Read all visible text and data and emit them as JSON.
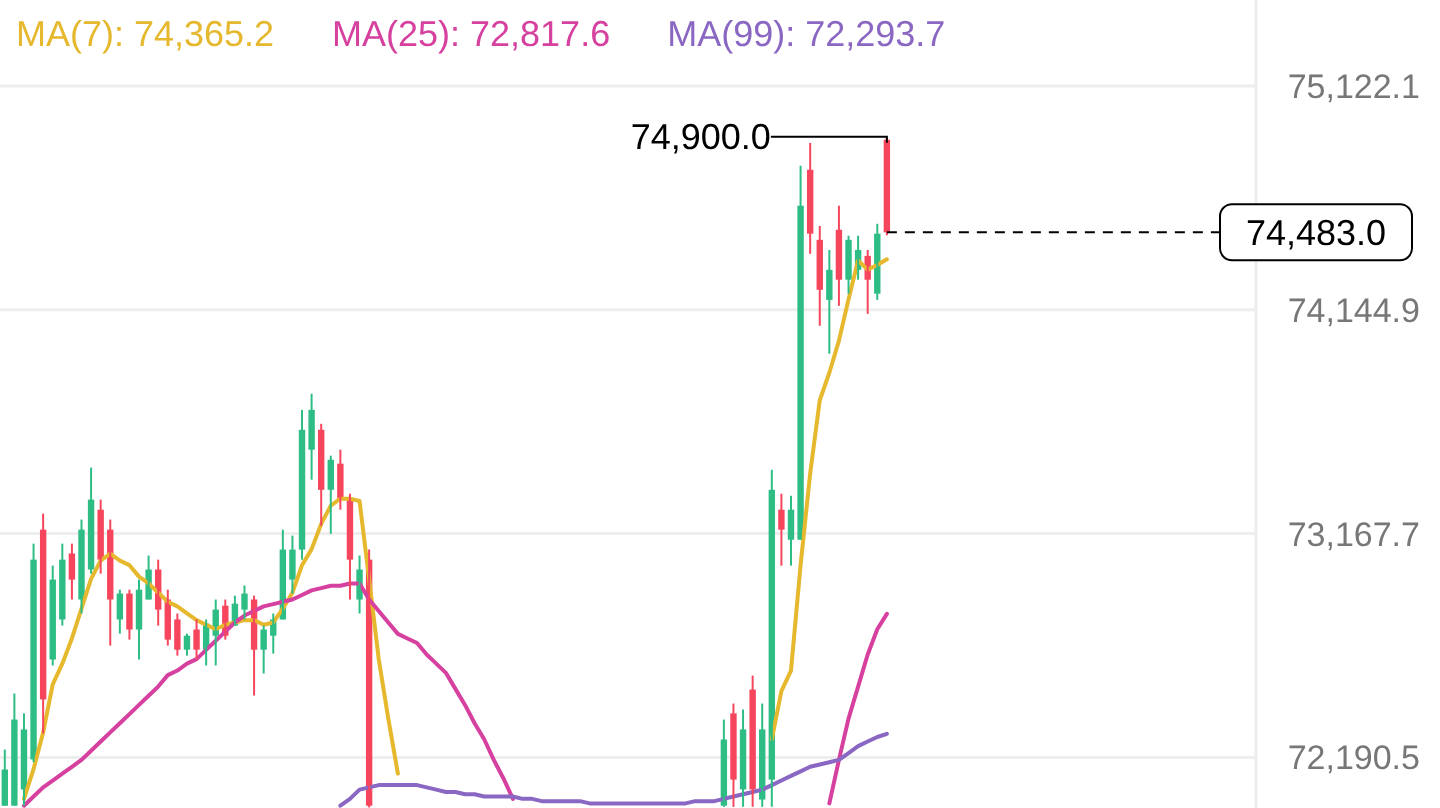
{
  "chart_data": {
    "type": "candlestick",
    "legend": "top",
    "tick_labels": "y",
    "grid": "y",
    "categories": [
      null,
      null,
      null,
      null,
      null,
      null,
      null,
      null,
      null,
      null,
      null,
      null,
      null,
      null,
      null,
      null,
      null,
      null,
      null,
      null,
      null,
      null,
      null,
      null,
      null,
      null,
      null,
      null,
      null,
      null,
      null,
      null,
      null,
      null,
      null,
      null,
      null,
      null,
      null,
      null,
      null,
      null,
      null,
      null,
      null,
      null,
      null,
      null,
      null,
      null,
      null,
      null,
      null,
      null,
      null,
      null,
      null,
      null,
      null,
      null,
      null,
      null,
      null,
      null,
      null,
      null,
      null,
      null,
      null,
      null,
      null,
      null,
      null,
      null,
      null,
      null,
      null,
      null,
      null,
      null,
      null,
      null,
      null,
      null,
      null,
      null,
      null,
      null,
      null,
      null,
      null,
      null,
      null,
      null,
      null,
      null,
      null,
      null,
      null,
      null,
      null,
      null,
      null,
      null,
      null,
      null,
      null,
      null,
      null,
      null,
      null,
      null,
      null,
      null,
      null,
      null,
      null,
      null,
      null,
      null,
      null,
      null,
      null,
      null,
      null,
      null,
      null,
      null,
      null,
      null,
      null
    ],
    "ylim": [
      71970,
      75497
    ],
    "yticks": [
      {
        "value": 72190.5,
        "label": "72,190.5"
      },
      {
        "value": 73167.7,
        "label": "73,167.7"
      },
      {
        "value": 74144.9,
        "label": "74,144.9"
      },
      {
        "value": 75122.1,
        "label": "75,122.1"
      }
    ],
    "ohlc": [
      [
        71980,
        72225,
        71980,
        72138
      ],
      [
        71980,
        72470,
        71980,
        72356
      ],
      [
        72051,
        72383,
        71980,
        72313
      ],
      [
        72182,
        73124,
        72170,
        73054
      ],
      [
        73185,
        73255,
        72295,
        72444
      ],
      [
        72618,
        73028,
        72592,
        72967
      ],
      [
        72793,
        73124,
        72766,
        73054
      ],
      [
        73081,
        73124,
        72880,
        72967
      ],
      [
        72880,
        73229,
        72819,
        73185
      ],
      [
        73011,
        73456,
        72993,
        73316
      ],
      [
        73272,
        73316,
        72993,
        73054
      ],
      [
        73185,
        73229,
        72679,
        72880
      ],
      [
        72793,
        72923,
        72731,
        72906
      ],
      [
        72906,
        72923,
        72705,
        72749
      ],
      [
        72749,
        72967,
        72618,
        72923
      ],
      [
        72880,
        73072,
        72880,
        73011
      ],
      [
        73011,
        73054,
        72766,
        72836
      ],
      [
        72880,
        72923,
        72679,
        72705
      ],
      [
        72793,
        72819,
        72635,
        72661
      ],
      [
        72661,
        72731,
        72635,
        72722
      ],
      [
        72749,
        72793,
        72618,
        72661
      ],
      [
        72661,
        72793,
        72592,
        72775
      ],
      [
        72722,
        72880,
        72592,
        72836
      ],
      [
        72853,
        72880,
        72705,
        72722
      ],
      [
        72766,
        72897,
        72766,
        72862
      ],
      [
        72836,
        72941,
        72793,
        72906
      ],
      [
        72880,
        72897,
        72461,
        72661
      ],
      [
        72661,
        72766,
        72557,
        72749
      ],
      [
        72722,
        72819,
        72644,
        72793
      ],
      [
        72793,
        73185,
        72793,
        73098
      ],
      [
        72967,
        73159,
        72906,
        73098
      ],
      [
        73098,
        73708,
        73054,
        73621
      ],
      [
        73534,
        73778,
        73403,
        73708
      ],
      [
        73621,
        73647,
        73202,
        73359
      ],
      [
        73359,
        73508,
        73167,
        73490
      ],
      [
        73473,
        73534,
        73272,
        73316
      ],
      [
        73316,
        73342,
        72880,
        73054
      ],
      [
        72880,
        73072,
        72819,
        73011
      ],
      [
        73054,
        73098,
        71972,
        71980
      ],
      null,
      null,
      null,
      null,
      null,
      null,
      null,
      null,
      null,
      null,
      null,
      null,
      null,
      null,
      null,
      null,
      null,
      null,
      null,
      null,
      null,
      null,
      null,
      null,
      null,
      null,
      null,
      null,
      null,
      null,
      null,
      null,
      null,
      null,
      null,
      null,
      [
        71980,
        72356,
        71975,
        72269
      ],
      [
        72383,
        72426,
        71975,
        72094
      ],
      [
        72051,
        72400,
        71975,
        72313
      ],
      [
        72487,
        72548,
        71975,
        72051
      ],
      [
        72007,
        72426,
        71975,
        72313
      ],
      [
        72094,
        73447,
        71975,
        73359
      ],
      [
        73272,
        73342,
        73028,
        73185
      ],
      [
        73141,
        73333,
        73028,
        73272
      ],
      [
        73141,
        74773,
        73141,
        74599
      ],
      [
        74756,
        74873,
        74389,
        74477
      ],
      [
        74450,
        74511,
        74075,
        74232
      ],
      [
        74188,
        74406,
        73953,
        74319
      ],
      [
        74494,
        74599,
        74162,
        74276
      ],
      [
        74276,
        74468,
        74215,
        74450
      ],
      [
        74319,
        74468,
        74276,
        74406
      ],
      [
        74380,
        74406,
        74127,
        74276
      ],
      [
        74215,
        74520,
        74188,
        74477
      ],
      [
        74887,
        74900,
        74470,
        74483
      ],
      null,
      null,
      null,
      null,
      null,
      null,
      null,
      null,
      null,
      null,
      null,
      null,
      null,
      null,
      null,
      null,
      null,
      null,
      null,
      null,
      null,
      null,
      null,
      null,
      null,
      null,
      null,
      null,
      null,
      null,
      null,
      null,
      null,
      null,
      null,
      null,
      null,
      null
    ],
    "colors": [
      "#2ebd85",
      "#2ebd85",
      "#2ebd85",
      "#2ebd85",
      "#f6465d",
      "#2ebd85",
      "#2ebd85",
      "#f6465d",
      "#2ebd85",
      "#2ebd85",
      "#f6465d",
      "#f6465d",
      "#2ebd85",
      "#f6465d",
      "#2ebd85",
      "#2ebd85",
      "#f6465d",
      "#f6465d",
      "#f6465d",
      "#2ebd85",
      "#f6465d",
      "#2ebd85",
      "#2ebd85",
      "#f6465d",
      "#2ebd85",
      "#2ebd85",
      "#f6465d",
      "#2ebd85",
      "#2ebd85",
      "#2ebd85",
      "#2ebd85",
      "#2ebd85",
      "#2ebd85",
      "#f6465d",
      "#2ebd85",
      "#f6465d",
      "#f6465d",
      "#2ebd85",
      "#f6465d",
      null,
      null,
      null,
      null,
      null,
      null,
      null,
      null,
      null,
      null,
      null,
      null,
      null,
      null,
      null,
      null,
      null,
      null,
      null,
      null,
      null,
      null,
      null,
      null,
      null,
      null,
      null,
      null,
      null,
      null,
      null,
      null,
      null,
      null,
      null,
      null,
      "#2ebd85",
      "#f6465d",
      "#2ebd85",
      "#f6465d",
      "#2ebd85",
      "#2ebd85",
      "#f6465d",
      "#2ebd85",
      "#2ebd85",
      "#f6465d",
      "#f6465d",
      "#2ebd85",
      "#f6465d",
      "#2ebd85",
      "#2ebd85",
      "#f6465d",
      "#2ebd85",
      "#f6465d",
      null,
      null,
      null,
      null,
      null,
      null,
      null,
      null,
      null,
      null,
      null,
      null,
      null,
      null,
      null,
      null,
      null,
      null,
      null,
      null,
      null,
      null,
      null,
      null,
      null,
      null,
      null,
      null,
      null,
      null,
      null,
      null,
      null,
      null,
      null,
      null,
      null,
      null
    ],
    "series": [
      {
        "name": "MA(7): 74,365.2",
        "type": "line",
        "color": "#e5b82e",
        "values": [
          null,
          null,
          72010,
          72140,
          72300,
          72510,
          72600,
          72710,
          72840,
          72970,
          73050,
          73080,
          73050,
          73030,
          72980,
          72950,
          72910,
          72870,
          72850,
          72820,
          72790,
          72770,
          72750,
          72770,
          72780,
          72790,
          72790,
          72770,
          72780,
          72840,
          72910,
          73030,
          73100,
          73210,
          73290,
          73320,
          73320,
          73310,
          72970,
          72620,
          72360,
          72120,
          null,
          null,
          null,
          null,
          null,
          null,
          null,
          null,
          null,
          null,
          null,
          null,
          null,
          null,
          null,
          null,
          null,
          null,
          null,
          null,
          null,
          null,
          null,
          null,
          null,
          null,
          null,
          null,
          null,
          null,
          null,
          null,
          null,
          null,
          null,
          null,
          null,
          null,
          72270,
          72480,
          72570,
          73030,
          73430,
          73750,
          73870,
          74010,
          74190,
          74360,
          74320,
          74340,
          74365.2,
          null,
          null,
          null,
          null,
          null,
          null,
          null,
          null,
          null,
          null,
          null,
          null,
          null,
          null,
          null,
          null,
          null,
          null,
          null,
          null,
          null,
          null,
          null,
          null,
          null,
          null,
          null,
          null,
          null,
          null,
          null,
          null,
          null,
          null,
          null,
          null,
          null,
          null
        ]
      },
      {
        "name": "MA(25): 72,817.6",
        "type": "line",
        "color": "#d6409f",
        "values": [
          null,
          null,
          71980,
          72020,
          72060,
          72090,
          72120,
          72150,
          72180,
          72220,
          72260,
          72300,
          72340,
          72380,
          72420,
          72460,
          72500,
          72550,
          72570,
          72600,
          72620,
          72660,
          72700,
          72740,
          72780,
          72810,
          72830,
          72850,
          72860,
          72870,
          72880,
          72900,
          72920,
          72930,
          72940,
          72940,
          72950,
          72950,
          72880,
          72830,
          72780,
          72730,
          72710,
          72690,
          72640,
          72600,
          72560,
          72490,
          72420,
          72340,
          72270,
          72180,
          72100,
          72010,
          null,
          null,
          null,
          null,
          null,
          null,
          null,
          null,
          null,
          null,
          null,
          null,
          null,
          null,
          null,
          null,
          null,
          null,
          null,
          null,
          null,
          null,
          null,
          null,
          null,
          null,
          null,
          null,
          null,
          null,
          null,
          null,
          71990,
          72180,
          72360,
          72500,
          72640,
          72750,
          72817.6,
          null,
          null,
          null,
          null,
          null,
          null,
          null,
          null,
          null,
          null,
          null,
          null,
          null,
          null,
          null,
          null,
          null,
          null,
          null,
          null,
          null,
          null,
          null,
          null,
          null,
          null,
          null,
          null,
          null,
          null,
          null,
          null,
          null,
          null,
          null,
          null,
          null,
          null
        ]
      },
      {
        "name": "MA(99): 72,293.7",
        "type": "line",
        "color": "#8a67c2",
        "values": [
          null,
          null,
          null,
          null,
          null,
          null,
          null,
          null,
          null,
          null,
          null,
          null,
          null,
          null,
          null,
          null,
          null,
          null,
          null,
          null,
          null,
          null,
          null,
          null,
          null,
          null,
          null,
          null,
          null,
          null,
          null,
          null,
          null,
          null,
          null,
          71980,
          72010,
          72050,
          72060,
          72070,
          72070,
          72070,
          72070,
          72070,
          72060,
          72050,
          72040,
          72040,
          72030,
          72030,
          72020,
          72020,
          72020,
          72020,
          72010,
          72010,
          72000,
          72000,
          72000,
          72000,
          72000,
          71990,
          71990,
          71990,
          71990,
          71990,
          71990,
          71990,
          71990,
          71990,
          71990,
          71990,
          72000,
          72000,
          72000,
          72010,
          72020,
          72030,
          72040,
          72050,
          72070,
          72090,
          72110,
          72130,
          72150,
          72160,
          72170,
          72180,
          72210,
          72240,
          72260,
          72280,
          72293.7,
          null,
          null,
          null,
          null,
          null,
          null,
          null,
          null,
          null,
          null,
          null,
          null,
          null,
          null,
          null,
          null,
          null,
          null,
          null,
          null,
          null,
          null,
          null,
          null,
          null,
          null,
          null,
          null,
          null,
          null,
          null,
          null,
          null,
          null,
          null,
          null,
          null,
          null
        ]
      }
    ],
    "ref_lines": [
      {
        "axis": "y",
        "value": 74483,
        "label": "74,483.0",
        "color": "#000000",
        "line_style": "dashed"
      }
    ],
    "annotations": [
      "74,900.0"
    ]
  }
}
